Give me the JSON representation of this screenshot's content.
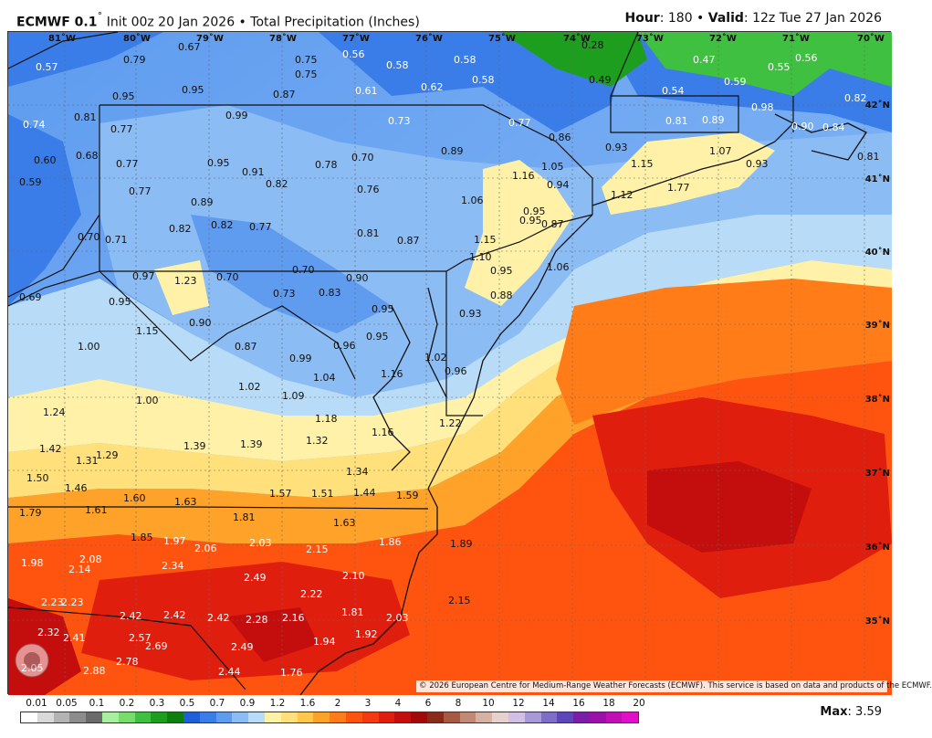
{
  "header": {
    "model": "ECMWF 0.1",
    "init": "Init 00z 20 Jan 2026",
    "product": "Total Precipitation (Inches)",
    "hour_label": "Hour",
    "hour_value": "180",
    "valid_label": "Valid",
    "valid_value": "12z Tue 27 Jan 2026"
  },
  "copyright": "© 2026 European Centre for Medium-Range Weather Forecasts (ECMWF). This service is based on data and products of the ECMWF.",
  "max": {
    "label": "Max",
    "value": "3.59"
  },
  "legend": {
    "labels": [
      "0.01",
      "0.05",
      "0.1",
      "0.2",
      "0.3",
      "0.5",
      "0.7",
      "0.9",
      "1.2",
      "1.6",
      "2",
      "3",
      "4",
      "6",
      "8",
      "10",
      "12",
      "14",
      "16",
      "18",
      "20"
    ],
    "colors": [
      "#ffffff",
      "#d9d9d9",
      "#b3b3b3",
      "#8c8c8c",
      "#6a6a6a",
      "#a8f0a0",
      "#78dc6c",
      "#40c040",
      "#1e9e1e",
      "#0e7e0e",
      "#1f5fd8",
      "#3a7de8",
      "#5f9cf0",
      "#8cbcf4",
      "#b8dcf8",
      "#fff2a8",
      "#ffe07a",
      "#ffc84a",
      "#ffa22a",
      "#ff7c18",
      "#ff5410",
      "#f43a10",
      "#e01e0e",
      "#c40e0e",
      "#a20a0a",
      "#8a2a1a",
      "#a65a42",
      "#c08a76",
      "#d6b2a6",
      "#e6d2cc",
      "#cfc0e4",
      "#a89ad8",
      "#7e6ec8",
      "#5c46b8",
      "#7a1ea8",
      "#9a10a8",
      "#c010b4",
      "#e010c8"
    ]
  },
  "axes": {
    "lon": [
      "81˚W",
      "80˚W",
      "79˚W",
      "78˚W",
      "77˚W",
      "76˚W",
      "75˚W",
      "74˚W",
      "73˚W",
      "72˚W",
      "71˚W",
      "70˚W"
    ],
    "lat": [
      "42˚N",
      "41˚N",
      "40˚N",
      "39˚N",
      "38˚N",
      "37˚N",
      "36˚N",
      "35˚N"
    ]
  },
  "values": [
    "0.57",
    "0.79",
    "0.67",
    "0.75",
    "0.75",
    "0.56",
    "0.58",
    "0.58",
    "0.58",
    "0.62",
    "0.61",
    "0.28",
    "0.49",
    "0.47",
    "0.55",
    "0.56",
    "0.59",
    "0.54",
    "0.95",
    "0.95",
    "0.87",
    "0.99",
    "0.73",
    "0.77",
    "0.86",
    "0.93",
    "0.81",
    "0.89",
    "0.98",
    "0.82",
    "0.74",
    "0.81",
    "0.77",
    "0.77",
    "0.60",
    "0.68",
    "0.59",
    "0.95",
    "0.91",
    "0.82",
    "0.78",
    "0.70",
    "0.76",
    "0.89",
    "1.05",
    "1.16",
    "0.94",
    "1.15",
    "1.07",
    "1.77",
    "0.90",
    "0.84",
    "0.93",
    "0.81",
    "0.77",
    "0.89",
    "1.06",
    "1.12",
    "0.95",
    "0.95",
    "0.87",
    "0.70",
    "0.71",
    "0.82",
    "0.82",
    "0.77",
    "0.81",
    "0.87",
    "1.15",
    "1.10",
    "0.95",
    "1.06",
    "0.97",
    "1.23",
    "0.70",
    "0.70",
    "0.90",
    "0.73",
    "0.83",
    "0.88",
    "0.69",
    "0.95",
    "0.95",
    "0.93",
    "1.15",
    "0.90",
    "0.87",
    "0.99",
    "0.96",
    "0.95",
    "1.00",
    "1.02",
    "0.96",
    "1.04",
    "1.16",
    "1.00",
    "1.02",
    "1.09",
    "1.18",
    "1.24",
    "1.16",
    "1.22",
    "1.42",
    "1.31",
    "1.29",
    "1.39",
    "1.39",
    "1.32",
    "1.34",
    "1.50",
    "1.46",
    "1.60",
    "1.63",
    "1.57",
    "1.51",
    "1.44",
    "1.59",
    "1.79",
    "1.61",
    "1.81",
    "1.63",
    "1.85",
    "1.97",
    "2.06",
    "2.03",
    "2.15",
    "1.86",
    "1.89",
    "1.98",
    "2.08",
    "2.14",
    "2.34",
    "2.49",
    "2.10",
    "2.22",
    "2.23",
    "2.23",
    "2.42",
    "2.42",
    "2.42",
    "2.28",
    "2.16",
    "2.15",
    "1.81",
    "2.03",
    "2.32",
    "2.41",
    "2.57",
    "2.69",
    "2.49",
    "1.94",
    "1.92",
    "2.05",
    "2.88",
    "2.78",
    "2.44",
    "1.76"
  ]
}
